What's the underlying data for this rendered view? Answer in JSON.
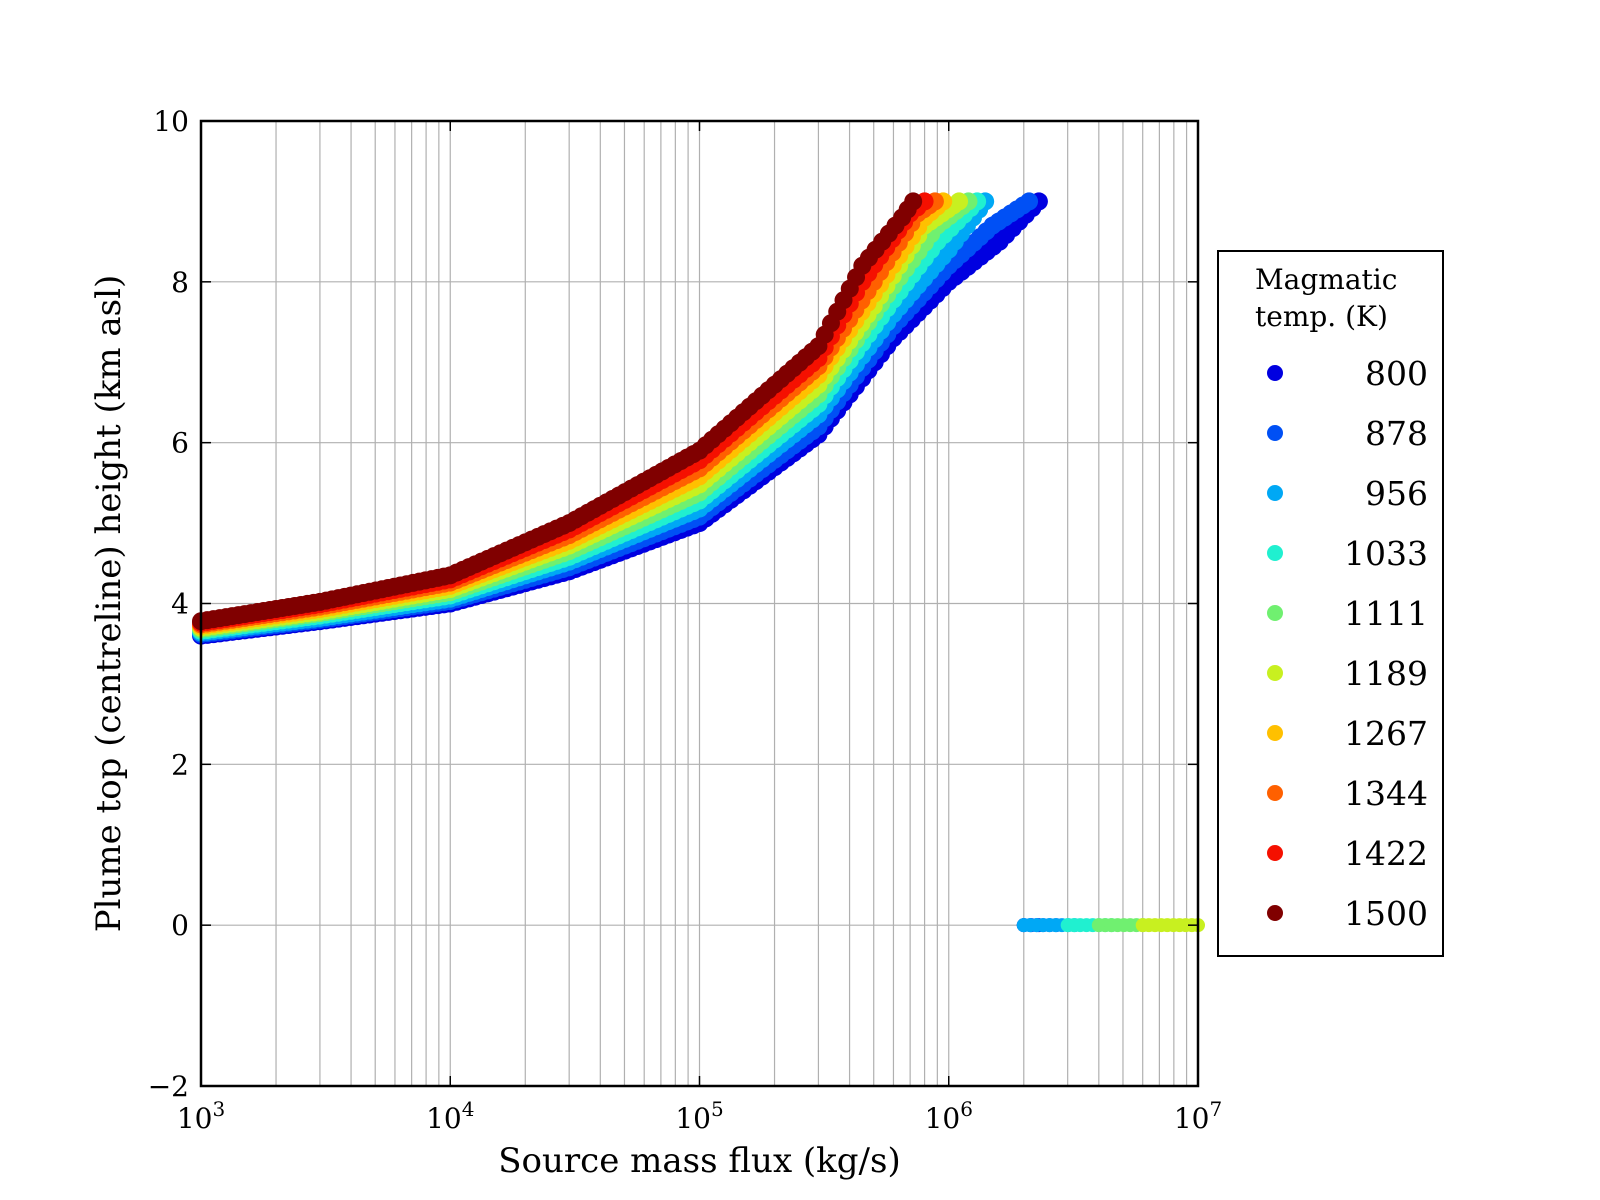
{
  "chart_data": {
    "type": "scatter",
    "title": "",
    "xlabel": "Source mass flux (kg/s)",
    "ylabel": "Plume top (centreline) height (km asl)",
    "xscale": "log",
    "xlim": [
      1000,
      10000000
    ],
    "ylim": [
      -2,
      10
    ],
    "grid": true,
    "x_ticks": [
      {
        "value": 1000,
        "base": "10",
        "exp": "3"
      },
      {
        "value": 10000,
        "base": "10",
        "exp": "4"
      },
      {
        "value": 100000,
        "base": "10",
        "exp": "5"
      },
      {
        "value": 1000000,
        "base": "10",
        "exp": "6"
      },
      {
        "value": 10000000,
        "base": "10",
        "exp": "7"
      }
    ],
    "y_ticks": [
      {
        "value": -2,
        "label": "−2"
      },
      {
        "value": 0,
        "label": "0"
      },
      {
        "value": 2,
        "label": "2"
      },
      {
        "value": 4,
        "label": "4"
      },
      {
        "value": 6,
        "label": "6"
      },
      {
        "value": 8,
        "label": "8"
      },
      {
        "value": 10,
        "label": "10"
      }
    ],
    "legend": {
      "title_line1": "Magmatic",
      "title_line2": "temp. (K)",
      "placement": "right, outside axes"
    },
    "series": [
      {
        "name": "800",
        "color": "#0000e0",
        "points": [
          [
            1000,
            3.6
          ],
          [
            3000,
            3.78
          ],
          [
            10000,
            4.0
          ],
          [
            30000,
            4.4
          ],
          [
            100000,
            5.0
          ],
          [
            300000,
            6.1
          ],
          [
            600000,
            7.3
          ],
          [
            1000000,
            8.0
          ],
          [
            1600000,
            8.5
          ],
          [
            2300000,
            9.0
          ],
          [
            2000000,
            0
          ],
          [
            2300000,
            0
          ]
        ]
      },
      {
        "name": "878",
        "color": "#0050f5",
        "points": [
          [
            1000,
            3.62
          ],
          [
            3000,
            3.8
          ],
          [
            10000,
            4.03
          ],
          [
            30000,
            4.45
          ],
          [
            100000,
            5.08
          ],
          [
            300000,
            6.2
          ],
          [
            600000,
            7.45
          ],
          [
            1000000,
            8.2
          ],
          [
            1500000,
            8.7
          ],
          [
            2100000,
            9.0
          ],
          [
            2000000,
            0
          ],
          [
            2700000,
            0
          ]
        ]
      },
      {
        "name": "956",
        "color": "#00a8f5",
        "points": [
          [
            1000,
            3.64
          ],
          [
            3000,
            3.82
          ],
          [
            10000,
            4.06
          ],
          [
            30000,
            4.52
          ],
          [
            100000,
            5.18
          ],
          [
            300000,
            6.35
          ],
          [
            600000,
            7.6
          ],
          [
            1000000,
            8.4
          ],
          [
            1400000,
            9.0
          ],
          [
            2000000,
            0
          ],
          [
            3200000,
            0
          ]
        ]
      },
      {
        "name": "1033",
        "color": "#20f0d0",
        "points": [
          [
            1000,
            3.66
          ],
          [
            3000,
            3.85
          ],
          [
            10000,
            4.1
          ],
          [
            30000,
            4.58
          ],
          [
            100000,
            5.28
          ],
          [
            300000,
            6.48
          ],
          [
            600000,
            7.78
          ],
          [
            900000,
            8.5
          ],
          [
            1300000,
            9.0
          ],
          [
            3000000,
            0
          ],
          [
            4500000,
            0
          ]
        ]
      },
      {
        "name": "1111",
        "color": "#70f070",
        "points": [
          [
            1000,
            3.68
          ],
          [
            3000,
            3.88
          ],
          [
            10000,
            4.14
          ],
          [
            30000,
            4.65
          ],
          [
            100000,
            5.38
          ],
          [
            300000,
            6.6
          ],
          [
            600000,
            7.95
          ],
          [
            900000,
            8.7
          ],
          [
            1200000,
            9.0
          ],
          [
            4000000,
            0
          ],
          [
            6000000,
            0
          ]
        ]
      },
      {
        "name": "1189",
        "color": "#c8f020",
        "points": [
          [
            1000,
            3.7
          ],
          [
            3000,
            3.9
          ],
          [
            10000,
            4.18
          ],
          [
            30000,
            4.72
          ],
          [
            100000,
            5.48
          ],
          [
            300000,
            6.72
          ],
          [
            500000,
            7.7
          ],
          [
            800000,
            8.7
          ],
          [
            1100000,
            9.0
          ],
          [
            6000000,
            0
          ],
          [
            10000000,
            0
          ]
        ]
      },
      {
        "name": "1267",
        "color": "#ffc000",
        "points": [
          [
            1000,
            3.72
          ],
          [
            3000,
            3.93
          ],
          [
            10000,
            4.22
          ],
          [
            30000,
            4.78
          ],
          [
            100000,
            5.58
          ],
          [
            300000,
            6.84
          ],
          [
            500000,
            7.85
          ],
          [
            800000,
            8.8
          ],
          [
            950000,
            9.0
          ]
        ]
      },
      {
        "name": "1344",
        "color": "#ff6000",
        "points": [
          [
            1000,
            3.74
          ],
          [
            3000,
            3.96
          ],
          [
            10000,
            4.26
          ],
          [
            30000,
            4.85
          ],
          [
            100000,
            5.68
          ],
          [
            300000,
            6.95
          ],
          [
            500000,
            8.0
          ],
          [
            750000,
            8.85
          ],
          [
            880000,
            9.0
          ]
        ]
      },
      {
        "name": "1422",
        "color": "#f51000",
        "points": [
          [
            1000,
            3.76
          ],
          [
            3000,
            3.99
          ],
          [
            10000,
            4.3
          ],
          [
            30000,
            4.92
          ],
          [
            100000,
            5.78
          ],
          [
            300000,
            7.05
          ],
          [
            450000,
            8.0
          ],
          [
            700000,
            8.85
          ],
          [
            800000,
            9.0
          ]
        ]
      },
      {
        "name": "1500",
        "color": "#800000",
        "points": [
          [
            1000,
            3.78
          ],
          [
            3000,
            4.02
          ],
          [
            10000,
            4.35
          ],
          [
            30000,
            5.0
          ],
          [
            100000,
            5.9
          ],
          [
            300000,
            7.2
          ],
          [
            450000,
            8.2
          ],
          [
            650000,
            8.8
          ],
          [
            720000,
            9.0
          ]
        ]
      }
    ]
  }
}
